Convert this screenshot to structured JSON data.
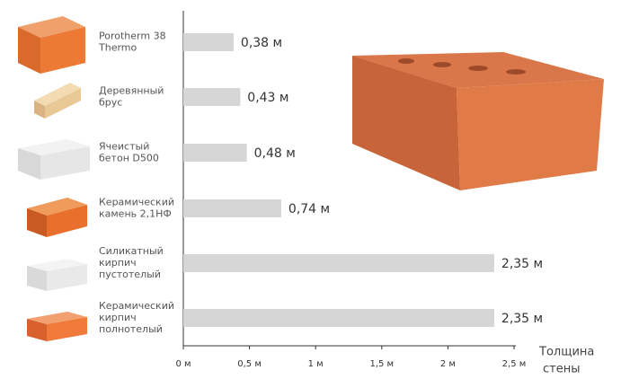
{
  "chart_data": {
    "type": "barh",
    "categories": [
      [
        "Porotherm 38",
        "Thermo"
      ],
      [
        "Деревянный",
        "брус"
      ],
      [
        "Ячеистый",
        "бетон D500"
      ],
      [
        "Керамический",
        "камень 2,1НФ"
      ],
      [
        "Силикатный",
        "кирпич",
        "пустотелый"
      ],
      [
        "Керамический",
        "кирпич",
        "полнотелый"
      ]
    ],
    "values": [
      0.38,
      0.43,
      0.48,
      0.74,
      2.35,
      2.35
    ],
    "value_labels": [
      "0,38 м",
      "0,43 м",
      "0,48 м",
      "0,74 м",
      "2,35 м",
      "2,35 м"
    ],
    "color": "#d6d6d6",
    "xlim": [
      0,
      2.5
    ],
    "xticks": [
      {
        "value": 0,
        "label": "0 м"
      },
      {
        "value": 0.5,
        "label": "0,5 м"
      },
      {
        "value": 1,
        "label": "1 м"
      },
      {
        "value": 1.5,
        "label": "1,5 м"
      },
      {
        "value": 2,
        "label": "2 м"
      },
      {
        "value": 2.5,
        "label": "2,5 м"
      }
    ],
    "xlabel": [
      "Толщина",
      "стены"
    ]
  }
}
